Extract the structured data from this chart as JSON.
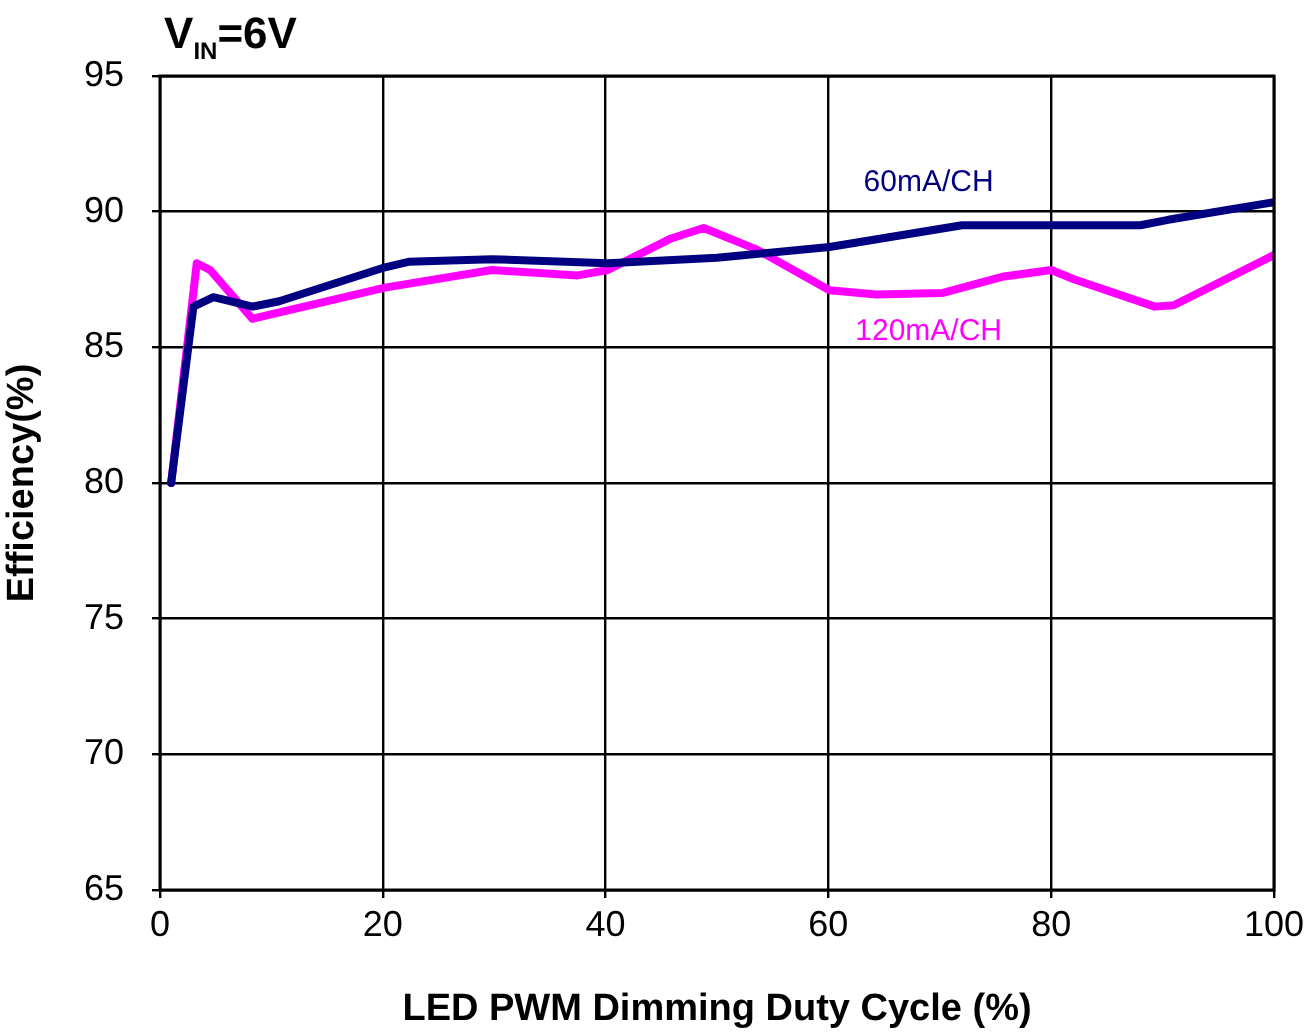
{
  "chart_data": {
    "type": "line",
    "title": "V$_{IN}$=6V",
    "xlabel": "LED PWM Dimming Duty Cycle (%)",
    "ylabel": "Efficiency(%)",
    "xlim": [
      0,
      100
    ],
    "xticks": [
      0,
      20,
      40,
      60,
      80,
      100
    ],
    "ylim": [
      65,
      95
    ],
    "yticks": [
      65,
      70,
      75,
      80,
      85,
      90,
      95
    ],
    "grid": true,
    "legend": false,
    "marker": "none",
    "line_style": "solid",
    "series": [
      {
        "name": "60mA/CH",
        "color": "#000080",
        "x": [
          1,
          3,
          4.8,
          8.3,
          10.7,
          20.2,
          22.3,
          29.8,
          40.2,
          50,
          60.1,
          72,
          88,
          90.5,
          100
        ],
        "values": [
          80,
          86.5,
          86.85,
          86.5,
          86.7,
          87.95,
          88.15,
          88.25,
          88.1,
          88.3,
          88.7,
          89.5,
          89.5,
          89.7,
          90.35
        ]
      },
      {
        "name": "120mA/CH",
        "color": "#ff00ff",
        "x": [
          1,
          3.3,
          4.5,
          8.3,
          20.2,
          29.8,
          37.5,
          40.2,
          45.8,
          48.8,
          53.6,
          60.1,
          64.3,
          70.2,
          75.6,
          80,
          82.1,
          89.3,
          91,
          100
        ],
        "values": [
          80,
          88.1,
          87.85,
          86.05,
          87.2,
          87.85,
          87.65,
          87.85,
          89,
          89.4,
          88.6,
          87.1,
          86.95,
          87,
          87.6,
          87.85,
          87.5,
          86.5,
          86.55,
          88.4
        ]
      }
    ]
  }
}
